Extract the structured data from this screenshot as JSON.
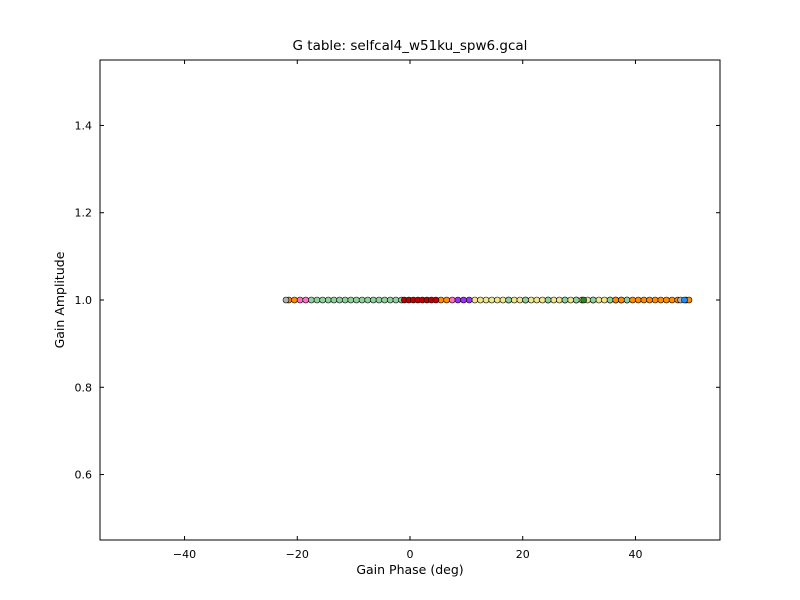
{
  "chart_data": {
    "type": "scatter",
    "title": "G table: selfcal4_w51ku_spw6.gcal",
    "xlabel": "Gain Phase (deg)",
    "ylabel": "Gain Amplitude",
    "xlim": [
      -55,
      55
    ],
    "ylim": [
      0.45,
      1.55
    ],
    "xticks": [
      -40,
      -20,
      0,
      20,
      40
    ],
    "xtick_labels": [
      "−40",
      "−20",
      "0",
      "20",
      "40"
    ],
    "yticks": [
      0.6,
      0.8,
      1.0,
      1.2,
      1.4
    ],
    "ytick_labels": [
      "0.6",
      "0.8",
      "1.0",
      "1.2",
      "1.4"
    ],
    "grid": false,
    "legend": false,
    "series": [
      {
        "color": "#f0e68c",
        "x": [
          11.5,
          12.5,
          13.5,
          14.5,
          15.5,
          16.5,
          17.5,
          18.5,
          19.5,
          20.5,
          21.5,
          22.5,
          23.5,
          24.5,
          25.5,
          26.5,
          27.5,
          28.5,
          29.5,
          30.5,
          31.5,
          32.5,
          33.5,
          34.5,
          35.5,
          36.5,
          37.5,
          38.5
        ],
        "y": [
          1.0,
          1.0,
          1.0,
          1.0,
          1.0,
          1.0,
          1.0,
          1.0,
          1.0,
          1.0,
          1.0,
          1.0,
          1.0,
          1.0,
          1.0,
          1.0,
          1.0,
          1.0,
          1.0,
          1.0,
          1.0,
          1.0,
          1.0,
          1.0,
          1.0,
          1.0,
          1.0,
          1.0
        ]
      },
      {
        "color": "#8fd19e",
        "x": [
          -17.5,
          -16.5,
          -15.5,
          -14.5,
          -13.5,
          -12.5,
          -11.5,
          -10.5,
          -9.5,
          -8.5,
          -7.5,
          -6.5,
          -5.5,
          -4.5,
          -3.5,
          -2.5,
          -1.5,
          17.5,
          20.5,
          24.5,
          27.5,
          29.5,
          32.5,
          35.5,
          38.5
        ],
        "y": [
          1.0,
          1.0,
          1.0,
          1.0,
          1.0,
          1.0,
          1.0,
          1.0,
          1.0,
          1.0,
          1.0,
          1.0,
          1.0,
          1.0,
          1.0,
          1.0,
          1.0,
          1.0,
          1.0,
          1.0,
          1.0,
          1.0,
          1.0,
          1.0,
          1.0
        ]
      },
      {
        "color": "#ff8c00",
        "x": [
          -21.5,
          -20.5,
          5.5,
          6.5,
          36.5,
          37.5,
          39.5,
          40.5,
          41.5,
          42.5,
          43.5,
          44.5,
          45.5,
          46.5,
          47.5,
          49.0,
          49.5
        ],
        "y": [
          1.0,
          1.0,
          1.0,
          1.0,
          1.0,
          1.0,
          1.0,
          1.0,
          1.0,
          1.0,
          1.0,
          1.0,
          1.0,
          1.0,
          1.0,
          1.0,
          1.0
        ]
      },
      {
        "color": "#c00000",
        "x": [
          -1.0,
          -0.2,
          0.6,
          1.4,
          2.2,
          3.0,
          3.8,
          4.6
        ],
        "y": [
          1.0,
          1.0,
          1.0,
          1.0,
          1.0,
          1.0,
          1.0,
          1.0
        ]
      },
      {
        "color": "#ff6ec7",
        "x": [
          -19.5,
          -18.5,
          7.5
        ],
        "y": [
          1.0,
          1.0,
          1.0
        ]
      },
      {
        "color": "#9b30ff",
        "x": [
          8.5,
          9.5,
          10.5
        ],
        "y": [
          1.0,
          1.0,
          1.0
        ]
      },
      {
        "color": "#b0b0b0",
        "x": [
          -22.0,
          48.0
        ],
        "y": [
          1.0,
          1.0
        ]
      },
      {
        "color": "#1e90ff",
        "x": [
          48.7
        ],
        "y": [
          1.0
        ]
      },
      {
        "color": "#228b22",
        "x": [
          30.8
        ],
        "y": [
          1.0
        ]
      }
    ]
  }
}
